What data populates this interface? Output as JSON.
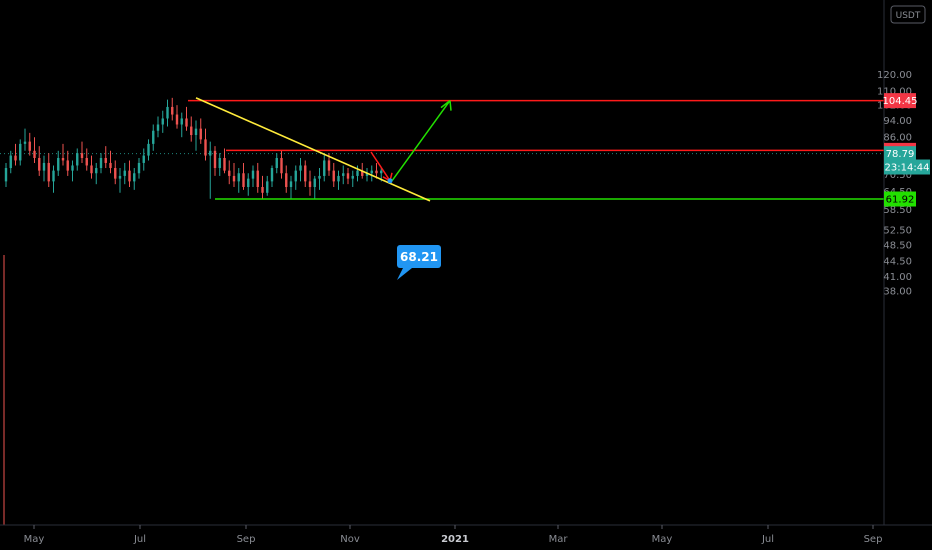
{
  "currency_label": "USDT",
  "chart_data": {
    "type": "candlestick",
    "currency": "USDT",
    "y_axis": {
      "scale": "log",
      "ticks": [
        "120.00",
        "110.00",
        "102.00",
        "94.00",
        "86.00",
        "70.50",
        "64.50",
        "58.50",
        "52.50",
        "48.50",
        "44.50",
        "41.00",
        "38.00"
      ],
      "range": [
        36,
        150
      ]
    },
    "x_axis": {
      "ticks": [
        {
          "label": "May",
          "bold": false
        },
        {
          "label": "Jul",
          "bold": false
        },
        {
          "label": "Sep",
          "bold": false
        },
        {
          "label": "Nov",
          "bold": false
        },
        {
          "label": "2021",
          "bold": true
        },
        {
          "label": "Mar",
          "bold": false
        },
        {
          "label": "May",
          "bold": false
        },
        {
          "label": "Jul",
          "bold": false
        },
        {
          "label": "Sep",
          "bold": false
        }
      ]
    },
    "price_labels": [
      {
        "value": 104.45,
        "text": "104.45",
        "color": "#f23645",
        "text_color": "#ffffff"
      },
      {
        "value": 80.18,
        "text": "80.18",
        "color": "#f23645",
        "text_color": "#ffffff"
      },
      {
        "value": 78.79,
        "text": "78.79",
        "color": "#26a69a",
        "text_color": "#ffffff"
      },
      {
        "value": 73.4,
        "text": "23:14:44",
        "color": "#26a69a",
        "text_color": "#ffffff"
      },
      {
        "value": 61.92,
        "text": "61.92",
        "color": "#22e000",
        "text_color": "#000000"
      }
    ],
    "horizontal_lines": [
      {
        "value": 104.45,
        "color": "#ff1a1a"
      },
      {
        "value": 80.18,
        "color": "#ff1a1a"
      },
      {
        "value": 61.92,
        "color": "#22e000"
      }
    ],
    "current_price": 78.79,
    "annotation": {
      "text": "68.21",
      "value": 68.21
    },
    "candles": [
      [
        68,
        75,
        66,
        73
      ],
      [
        73,
        80,
        71,
        78
      ],
      [
        78,
        83,
        74,
        76
      ],
      [
        76,
        85,
        74,
        83
      ],
      [
        83,
        90,
        80,
        84
      ],
      [
        84,
        88,
        78,
        80
      ],
      [
        80,
        86,
        75,
        77
      ],
      [
        77,
        82,
        70,
        72
      ],
      [
        72,
        78,
        68,
        75
      ],
      [
        75,
        79,
        66,
        68
      ],
      [
        68,
        74,
        64,
        72
      ],
      [
        72,
        80,
        70,
        77
      ],
      [
        77,
        83,
        74,
        76
      ],
      [
        76,
        80,
        70,
        72
      ],
      [
        72,
        76,
        68,
        74
      ],
      [
        74,
        81,
        72,
        79
      ],
      [
        79,
        84,
        75,
        77
      ],
      [
        77,
        81,
        72,
        74
      ],
      [
        74,
        78,
        69,
        71
      ],
      [
        71,
        75,
        67,
        73
      ],
      [
        73,
        79,
        71,
        77
      ],
      [
        77,
        82,
        73,
        75
      ],
      [
        75,
        80,
        71,
        73
      ],
      [
        73,
        76,
        67,
        69
      ],
      [
        69,
        73,
        64,
        70
      ],
      [
        70,
        75,
        67,
        72
      ],
      [
        72,
        76,
        66,
        68
      ],
      [
        68,
        73,
        65,
        71
      ],
      [
        71,
        77,
        69,
        75
      ],
      [
        75,
        81,
        72,
        78
      ],
      [
        78,
        85,
        76,
        83
      ],
      [
        83,
        92,
        80,
        89
      ],
      [
        89,
        96,
        86,
        92
      ],
      [
        92,
        99,
        88,
        95
      ],
      [
        95,
        105,
        91,
        101
      ],
      [
        101,
        106,
        94,
        97
      ],
      [
        97,
        102,
        90,
        92
      ],
      [
        92,
        98,
        86,
        95
      ],
      [
        95,
        101,
        89,
        91
      ],
      [
        91,
        96,
        84,
        87
      ],
      [
        87,
        94,
        80,
        90
      ],
      [
        90,
        95,
        83,
        85
      ],
      [
        85,
        90,
        76,
        78
      ],
      [
        78,
        84,
        62,
        80
      ],
      [
        80,
        82,
        70,
        73
      ],
      [
        73,
        79,
        70,
        77
      ],
      [
        77,
        81,
        71,
        72
      ],
      [
        72,
        76,
        67,
        70
      ],
      [
        70,
        75,
        66,
        68
      ],
      [
        68,
        73,
        64,
        71
      ],
      [
        71,
        75,
        65,
        66
      ],
      [
        66,
        71,
        63,
        69
      ],
      [
        69,
        74,
        66,
        72
      ],
      [
        72,
        75,
        64,
        66
      ],
      [
        66,
        70,
        62,
        64
      ],
      [
        64,
        70,
        63,
        68
      ],
      [
        68,
        74,
        66,
        73
      ],
      [
        73,
        79,
        71,
        77
      ],
      [
        77,
        80,
        69,
        71
      ],
      [
        71,
        74,
        64,
        66
      ],
      [
        66,
        70,
        62,
        68
      ],
      [
        68,
        74,
        65,
        72
      ],
      [
        72,
        77,
        68,
        74
      ],
      [
        74,
        76,
        66,
        68
      ],
      [
        68,
        72,
        63,
        66
      ],
      [
        66,
        70,
        62,
        69
      ],
      [
        69,
        73,
        65,
        70
      ],
      [
        70,
        79,
        68,
        76
      ],
      [
        76,
        79,
        70,
        72
      ],
      [
        72,
        75,
        66,
        68
      ],
      [
        68,
        72,
        65,
        70
      ],
      [
        70,
        74,
        67,
        71
      ],
      [
        71,
        73,
        67,
        69
      ],
      [
        69,
        72,
        66,
        70
      ],
      [
        70,
        74,
        68,
        72
      ],
      [
        72,
        75,
        69,
        70
      ],
      [
        70,
        73,
        68,
        71
      ],
      [
        71,
        74,
        68,
        72
      ],
      [
        72,
        75,
        69,
        71
      ],
      [
        71,
        73,
        68,
        72
      ]
    ]
  }
}
